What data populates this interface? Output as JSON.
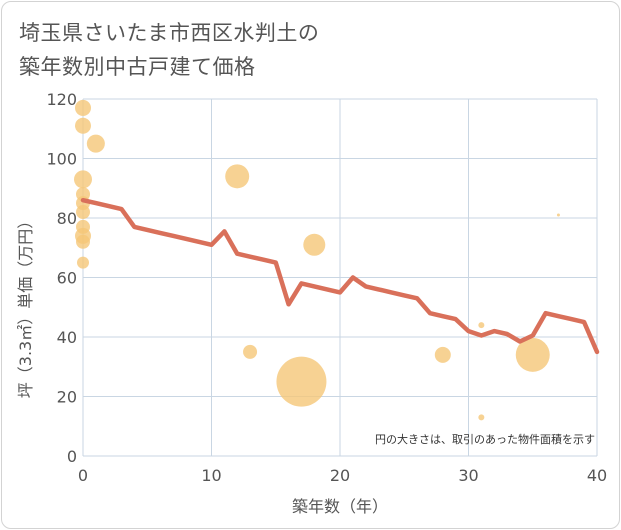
{
  "title_lines": [
    "埼玉県さいたま市西区水判土の",
    "築年数別中古戸建て価格"
  ],
  "chart_data": {
    "type": "scatter+line",
    "xlabel": "築年数（年）",
    "ylabel": "坪（3.3㎡）単価（万円）",
    "xlim": [
      0,
      40
    ],
    "ylim": [
      0,
      120
    ],
    "x_ticks": [
      0,
      10,
      20,
      30,
      40
    ],
    "y_ticks": [
      0,
      20,
      40,
      60,
      80,
      100,
      120
    ],
    "annotation": "円の大きさは、取引のあった物件面積を示す",
    "colors": {
      "bubble": "#f5c778",
      "line": "#d9705a",
      "grid": "#c9d6e3",
      "bg": "#ffffff"
    },
    "bubbles": [
      {
        "x": 0,
        "y": 117,
        "s": 8
      },
      {
        "x": 0,
        "y": 111,
        "s": 8
      },
      {
        "x": 1,
        "y": 105,
        "s": 9
      },
      {
        "x": 0,
        "y": 93,
        "s": 9
      },
      {
        "x": 0,
        "y": 88,
        "s": 7
      },
      {
        "x": 0,
        "y": 85,
        "s": 7
      },
      {
        "x": 0,
        "y": 82,
        "s": 7
      },
      {
        "x": 0,
        "y": 77,
        "s": 7
      },
      {
        "x": 0,
        "y": 74,
        "s": 8
      },
      {
        "x": 0,
        "y": 72,
        "s": 7
      },
      {
        "x": 0,
        "y": 65,
        "s": 6
      },
      {
        "x": 12,
        "y": 94,
        "s": 12
      },
      {
        "x": 18,
        "y": 71,
        "s": 11
      },
      {
        "x": 13,
        "y": 35,
        "s": 7
      },
      {
        "x": 17,
        "y": 25,
        "s": 25
      },
      {
        "x": 28,
        "y": 34,
        "s": 8
      },
      {
        "x": 31,
        "y": 44,
        "s": 3
      },
      {
        "x": 31,
        "y": 13,
        "s": 3
      },
      {
        "x": 35,
        "y": 34,
        "s": 17
      },
      {
        "x": 37,
        "y": 81,
        "s": 1.5
      }
    ],
    "trend": {
      "x": [
        0,
        1,
        2,
        3,
        4,
        5,
        6,
        7,
        8,
        9,
        10,
        11,
        12,
        13,
        14,
        15,
        16,
        17,
        18,
        19,
        20,
        21,
        22,
        23,
        24,
        25,
        26,
        27,
        28,
        29,
        30,
        31,
        32,
        33,
        34,
        35,
        36,
        37,
        38,
        39,
        40
      ],
      "y": [
        86,
        85,
        84,
        83,
        77,
        76,
        75,
        74,
        73,
        72,
        71,
        75.5,
        68,
        67,
        66,
        65,
        51,
        58,
        57,
        56,
        55,
        60,
        57,
        56,
        55,
        54,
        53,
        48,
        47,
        46,
        42,
        40.5,
        42,
        41,
        38.5,
        40.5,
        48,
        47,
        46,
        45,
        35
      ]
    }
  }
}
